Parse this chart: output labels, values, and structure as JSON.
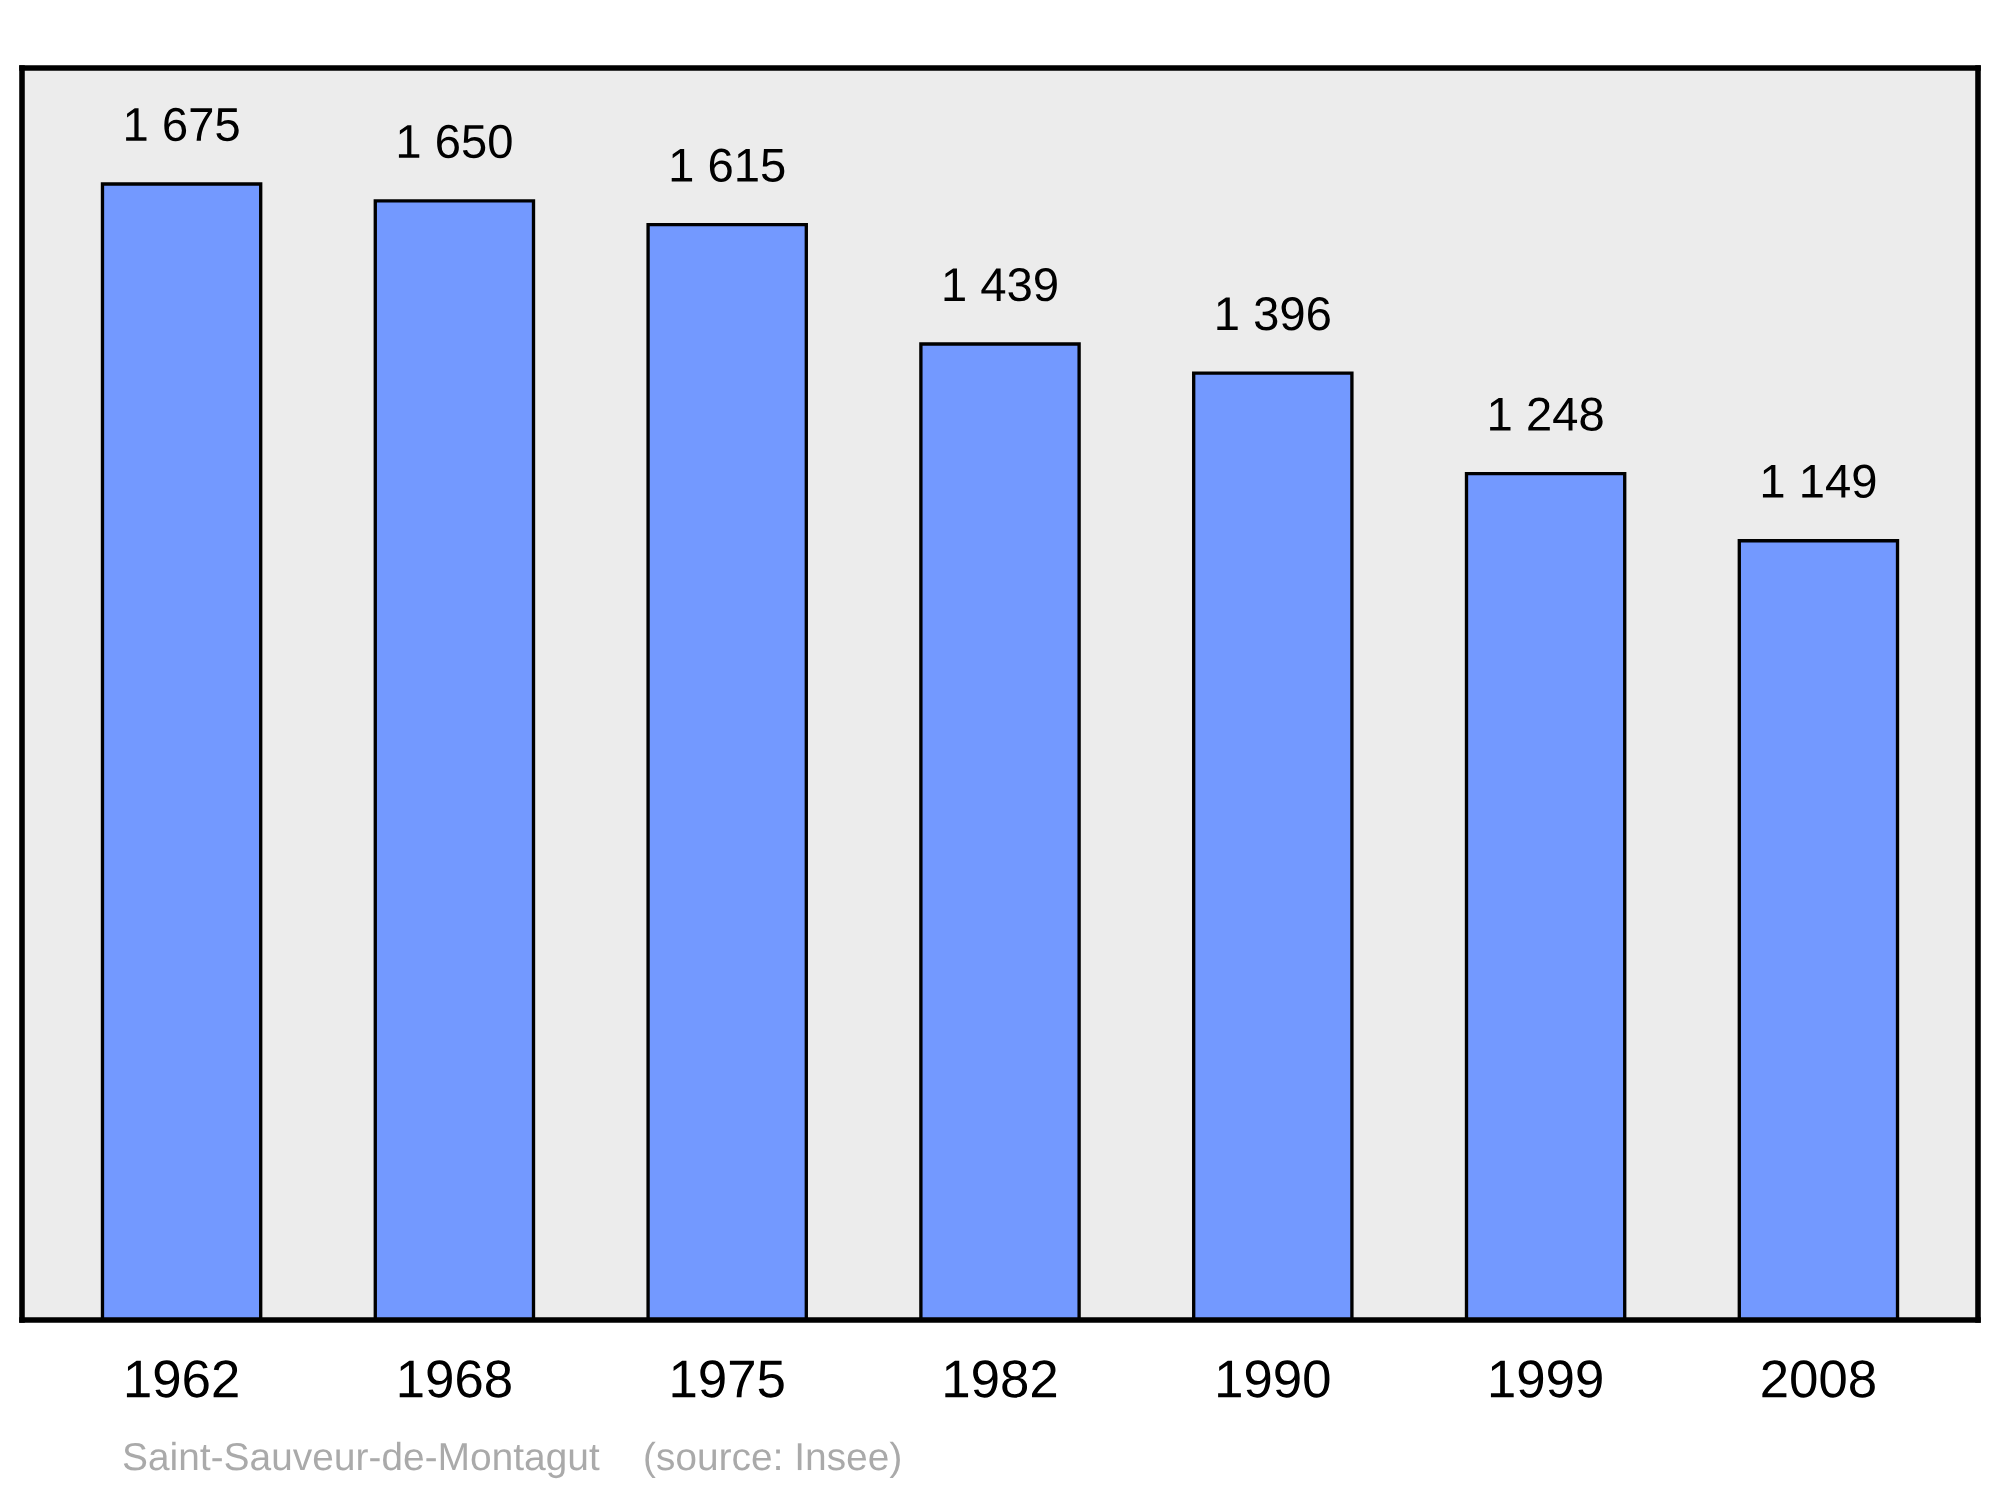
{
  "chart_data": {
    "type": "bar",
    "categories": [
      "1962",
      "1968",
      "1975",
      "1982",
      "1990",
      "1999",
      "2008"
    ],
    "values": [
      1675,
      1650,
      1615,
      1439,
      1396,
      1248,
      1149
    ],
    "color": "#7399ff",
    "data_labels": true,
    "value_labels": [
      "1 675",
      "1 650",
      "1 615",
      "1 439",
      "1 396",
      "1 248",
      "1 149"
    ],
    "ylim": [
      0,
      1846
    ],
    "tick_labels": "x",
    "grid": false,
    "legend": false,
    "annotations": [
      "Saint-Sauveur-de-Montagut",
      "(source: Insee)"
    ]
  }
}
